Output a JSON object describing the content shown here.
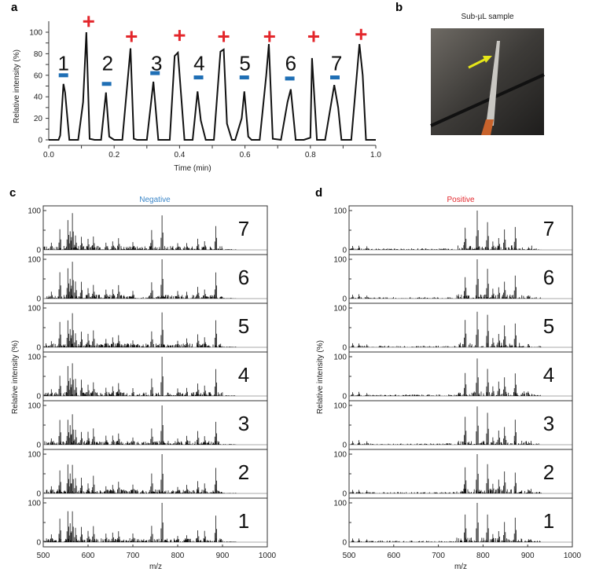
{
  "panel_labels": {
    "a": "a",
    "b": "b",
    "c": "c",
    "d": "d"
  },
  "panel_b": {
    "title": "Sub-µL sample",
    "arrow_color": "#e6e619"
  },
  "chart_data": [
    {
      "panel": "a",
      "type": "line",
      "xlabel": "Time (min)",
      "ylabel": "Relative intensity (%)",
      "xlim": [
        0,
        1.0
      ],
      "ylim": [
        0,
        110
      ],
      "xticks": [
        "0.0",
        "0.2",
        "0.4",
        "0.6",
        "0.8",
        "1.0"
      ],
      "yticks": [
        "0",
        "20",
        "40",
        "60",
        "80",
        "100"
      ],
      "x": [
        0,
        0.03,
        0.035,
        0.045,
        0.05,
        0.063,
        0.09,
        0.105,
        0.115,
        0.125,
        0.14,
        0.16,
        0.175,
        0.185,
        0.2,
        0.225,
        0.25,
        0.26,
        0.27,
        0.3,
        0.32,
        0.335,
        0.37,
        0.385,
        0.395,
        0.415,
        0.44,
        0.455,
        0.465,
        0.48,
        0.505,
        0.525,
        0.535,
        0.545,
        0.56,
        0.57,
        0.59,
        0.598,
        0.61,
        0.62,
        0.645,
        0.665,
        0.673,
        0.685,
        0.71,
        0.73,
        0.74,
        0.755,
        0.78,
        0.8,
        0.805,
        0.82,
        0.845,
        0.873,
        0.885,
        0.895,
        0.925,
        0.95,
        0.96,
        0.97,
        1.0
      ],
      "y": [
        0,
        0,
        4,
        52,
        44,
        0,
        0,
        35,
        100,
        1,
        0,
        0,
        44,
        3,
        0,
        0,
        85,
        1,
        0,
        0,
        54,
        0,
        0,
        78,
        81,
        0,
        0,
        45,
        18,
        0,
        0,
        82,
        84,
        15,
        0,
        0,
        20,
        45,
        3,
        0,
        0,
        60,
        89,
        1,
        0,
        35,
        47,
        0,
        0,
        2,
        76,
        0,
        0,
        51,
        30,
        0,
        0,
        89,
        60,
        0,
        0
      ],
      "sample_labels": [
        {
          "text": "1",
          "x": 0.045
        },
        {
          "text": "2",
          "x": 0.18
        },
        {
          "text": "3",
          "x": 0.33
        },
        {
          "text": "4",
          "x": 0.46
        },
        {
          "text": "5",
          "x": 0.6
        },
        {
          "text": "6",
          "x": 0.74
        },
        {
          "text": "7",
          "x": 0.88
        }
      ],
      "negative_markers": {
        "symbol": "−",
        "color": "#1f6fb5",
        "points": [
          [
            0.045,
            60
          ],
          [
            0.177,
            52
          ],
          [
            0.325,
            62
          ],
          [
            0.458,
            58
          ],
          [
            0.598,
            58
          ],
          [
            0.737,
            57
          ],
          [
            0.875,
            58
          ]
        ]
      },
      "positive_markers": {
        "symbol": "+",
        "color": "#e3262b",
        "points": [
          [
            0.122,
            110
          ],
          [
            0.253,
            96
          ],
          [
            0.4,
            97
          ],
          [
            0.535,
            96
          ],
          [
            0.675,
            96
          ],
          [
            0.81,
            96
          ],
          [
            0.955,
            98
          ]
        ]
      }
    },
    {
      "panel": "c",
      "type": "bar",
      "title": "Negative",
      "title_color": "#3a86c8",
      "xlabel": "m/z",
      "ylabel": "Relative intensity (%)",
      "xlim": [
        500,
        1000
      ],
      "xticks": [
        "500",
        "600",
        "700",
        "800",
        "900",
        "1000"
      ],
      "yticks": [
        "0",
        "100"
      ],
      "rows": [
        "7",
        "6",
        "5",
        "4",
        "3",
        "2",
        "1"
      ],
      "major_peaks": {
        "mz": [
          518,
          537,
          555,
          560,
          565,
          572,
          585,
          600,
          612,
          640,
          655,
          668,
          700,
          742,
          765,
          800,
          820,
          845,
          860,
          885
        ],
        "intensity": [
          18,
          60,
          73,
          45,
          82,
          40,
          38,
          30,
          40,
          20,
          22,
          30,
          20,
          45,
          100,
          18,
          20,
          32,
          25,
          65
        ]
      }
    },
    {
      "panel": "d",
      "type": "bar",
      "title": "Positive",
      "title_color": "#e3262b",
      "xlabel": "m/z",
      "ylabel": "Relative intensity (%)",
      "xlim": [
        500,
        1000
      ],
      "xticks": [
        "500",
        "600",
        "700",
        "800",
        "900",
        "1000"
      ],
      "yticks": [
        "0",
        "100"
      ],
      "rows": [
        "7",
        "6",
        "5",
        "4",
        "3",
        "2",
        "1"
      ],
      "major_peaks": {
        "mz": [
          508,
          522,
          540,
          760,
          787,
          810,
          822,
          835,
          848,
          872,
          902
        ],
        "intensity": [
          10,
          10,
          8,
          63,
          100,
          78,
          22,
          32,
          50,
          57,
          8
        ]
      }
    }
  ]
}
